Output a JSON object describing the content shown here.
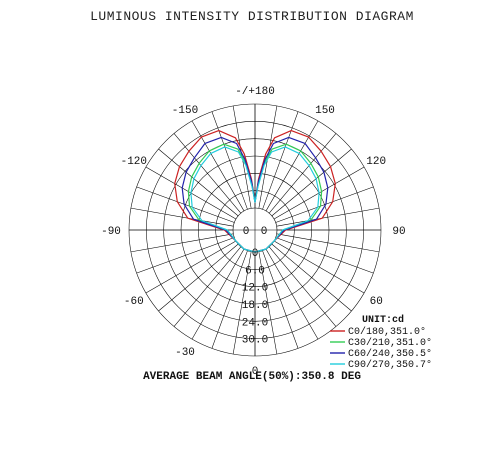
{
  "title": "LUMINOUS INTENSITY DISTRIBUTION DIAGRAM",
  "footer": "AVERAGE BEAM ANGLE(50%):350.8 DEG",
  "chart_data": {
    "type": "polar-line",
    "title": "LUMINOUS INTENSITY DISTRIBUTION DIAGRAM",
    "unit_label": "UNIT:cd",
    "radial_range": [
      0,
      36
    ],
    "radial_tick_labels": [
      "0",
      "6.0",
      "12.0",
      "18.0",
      "24.0",
      "30.0"
    ],
    "radial_tick_values": [
      0,
      6,
      12,
      18,
      24,
      30
    ],
    "angle_labels": [
      {
        "angle": 180,
        "text": "-/+180"
      },
      {
        "angle": -150,
        "text": "-150"
      },
      {
        "angle": 150,
        "text": "150"
      },
      {
        "angle": -120,
        "text": "-120"
      },
      {
        "angle": 120,
        "text": "120"
      },
      {
        "angle": -90,
        "text": "-90"
      },
      {
        "angle": 90,
        "text": "90"
      },
      {
        "angle": -60,
        "text": "-60"
      },
      {
        "angle": 60,
        "text": "60"
      },
      {
        "angle": -30,
        "text": "-30"
      },
      {
        "angle": 0,
        "text": "0"
      }
    ],
    "series": [
      {
        "name": "C0/180,351.0°",
        "color": "#cc2222",
        "angles": [
          0,
          30,
          60,
          90,
          100,
          110,
          120,
          130,
          140,
          150,
          160,
          168,
          172,
          176,
          180
        ],
        "values": [
          0,
          0,
          0,
          3,
          16,
          21,
          24.5,
          26.5,
          28,
          29.5,
          29,
          25,
          19,
          10,
          2
        ]
      },
      {
        "name": "C30/210,351.0°",
        "color": "#33cc55",
        "angles": [
          0,
          30,
          60,
          90,
          100,
          110,
          120,
          130,
          140,
          150,
          160,
          168,
          172,
          176,
          180
        ],
        "values": [
          0,
          0,
          0,
          2,
          12,
          16.5,
          19,
          21,
          22.5,
          24,
          24,
          21,
          16,
          8,
          2
        ]
      },
      {
        "name": "C60/240,350.5°",
        "color": "#2222aa",
        "angles": [
          0,
          30,
          60,
          90,
          100,
          110,
          120,
          130,
          140,
          150,
          160,
          168,
          172,
          176,
          180
        ],
        "values": [
          0,
          0,
          0,
          2.5,
          14,
          18.5,
          21.5,
          23.5,
          25,
          27,
          26.5,
          23,
          17,
          9,
          2
        ]
      },
      {
        "name": "C90/270,350.7°",
        "color": "#22ccdd",
        "angles": [
          0,
          30,
          60,
          90,
          100,
          110,
          120,
          130,
          140,
          150,
          160,
          168,
          172,
          176,
          180
        ],
        "values": [
          0,
          0,
          0,
          2,
          11,
          15.5,
          18,
          20,
          21.5,
          23,
          23,
          20,
          15,
          7.5,
          2
        ]
      }
    ],
    "legend_position": "bottom-right",
    "grid": true
  }
}
